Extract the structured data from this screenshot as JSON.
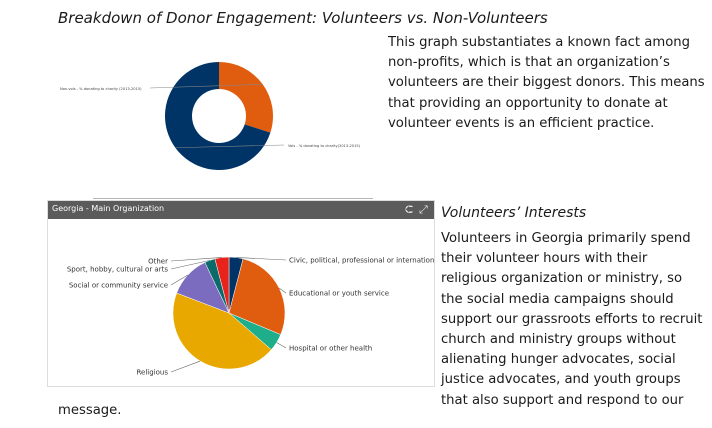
{
  "document": {
    "title": "Breakdown of Donor Engagement: Volunteers vs. Non-Volunteers",
    "paragraph1_lines": [
      "This graph substantiates a known fact among",
      "non-profits, which is that an organization’s",
      "volunteers are their biggest donors. This means",
      "that providing an opportunity to donate at",
      "volunteer events is an efficient practice."
    ],
    "section_heading": "Volunteers’ Interests",
    "paragraph2_lines": [
      "Volunteers in Georgia primarily spend",
      "their volunteer hours with their",
      "religious organization or ministry, so",
      "the social media campaigns should",
      "support our grassroots efforts to recruit",
      "church and ministry groups without",
      "alienating hunger advocates, social",
      "justice advocates, and youth groups",
      "that also support and respond to our"
    ],
    "trailing_text": "message."
  },
  "chart_panel": {
    "title": "Georgia - Main Organization",
    "share_icon": "share-icon",
    "expand_icon": "expand-icon"
  },
  "chart_data": [
    {
      "type": "pie",
      "variant": "donut",
      "title": "",
      "labels": [
        "Non-vols - % donating to charity (2013-2015)",
        "Vols - % donating to charity(2013-2015)"
      ],
      "values": [
        30,
        70
      ],
      "colors": [
        "#e05c0f",
        "#003366"
      ]
    },
    {
      "type": "pie",
      "title": "Georgia - Main Organization",
      "labels": [
        "Civic, political, professional or international",
        "Educational or youth service",
        "Hospital or other health",
        "Religious",
        "Social or community service",
        "Sport, hobby, cultural or arts",
        "Other"
      ],
      "values": [
        4,
        27,
        5,
        44,
        12,
        3,
        4
      ],
      "colors": [
        "#003366",
        "#e05c0f",
        "#1fae8a",
        "#e8a800",
        "#7b6cbf",
        "#0b6a6a",
        "#e8231c"
      ]
    }
  ]
}
